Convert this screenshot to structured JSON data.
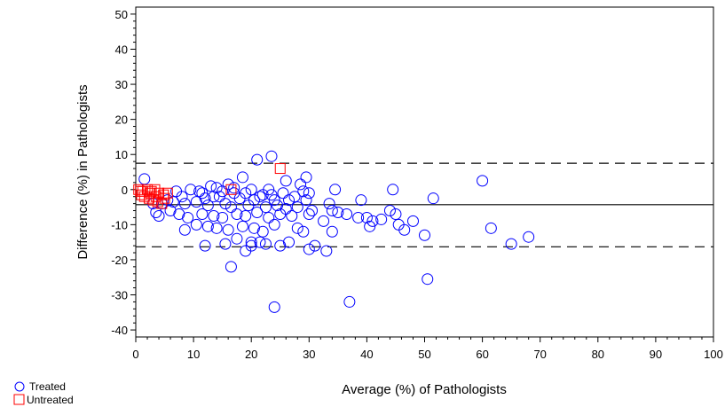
{
  "chart_data": {
    "type": "scatter",
    "xlabel": "Average (%) of Pathologists",
    "ylabel": "Difference (%) in Pathologists",
    "xlim": [
      0,
      100
    ],
    "ylim": [
      -42,
      52
    ],
    "x_ticks": [
      0,
      10,
      20,
      30,
      40,
      50,
      60,
      70,
      80,
      90,
      100
    ],
    "y_ticks": [
      -40,
      -30,
      -20,
      -10,
      0,
      10,
      20,
      30,
      40,
      50
    ],
    "reference_lines": [
      {
        "y": 7.5,
        "style": "dashed"
      },
      {
        "y": -4.3,
        "style": "solid"
      },
      {
        "y": -16.3,
        "style": "dashed"
      }
    ],
    "legend_position": "bottom-left",
    "series": [
      {
        "name": "Treated",
        "marker": "circle",
        "color": "#0000ff",
        "points": [
          [
            23.5,
            9.5
          ],
          [
            21,
            8.5
          ],
          [
            60,
            2.5
          ],
          [
            29.5,
            3.5
          ],
          [
            18.5,
            3.5
          ],
          [
            26,
            2.5
          ],
          [
            28.5,
            1.5
          ],
          [
            1.5,
            3
          ],
          [
            16,
            1.5
          ],
          [
            13,
            1
          ],
          [
            14,
            0.5
          ],
          [
            20,
            0
          ],
          [
            23,
            0
          ],
          [
            34.5,
            0
          ],
          [
            44.5,
            0
          ],
          [
            7,
            -0.5
          ],
          [
            9.5,
            0
          ],
          [
            11,
            -0.5
          ],
          [
            15,
            -0.5
          ],
          [
            17,
            -1
          ],
          [
            19,
            -1
          ],
          [
            22,
            -1.5
          ],
          [
            25.5,
            -1
          ],
          [
            29,
            -0.5
          ],
          [
            30,
            -1
          ],
          [
            27.5,
            -2
          ],
          [
            51.5,
            -2.5
          ],
          [
            39,
            -3
          ],
          [
            8,
            -2
          ],
          [
            12,
            -2.5
          ],
          [
            14.5,
            -2
          ],
          [
            18,
            -2.5
          ],
          [
            20.5,
            -3
          ],
          [
            21.5,
            -2
          ],
          [
            24,
            -3
          ],
          [
            26.5,
            -3
          ],
          [
            3,
            -4
          ],
          [
            4.5,
            -4
          ],
          [
            5.5,
            -3
          ],
          [
            6.5,
            -3.5
          ],
          [
            8.5,
            -4
          ],
          [
            10.5,
            -3.5
          ],
          [
            12.5,
            -4.5
          ],
          [
            15.5,
            -4
          ],
          [
            16.5,
            -5
          ],
          [
            19.5,
            -4.5
          ],
          [
            22.5,
            -5
          ],
          [
            24.5,
            -4.5
          ],
          [
            26,
            -5.5
          ],
          [
            28,
            -5
          ],
          [
            30.5,
            -6
          ],
          [
            33.5,
            -4
          ],
          [
            34,
            -6
          ],
          [
            3.5,
            -6.5
          ],
          [
            4,
            -7.5
          ],
          [
            6,
            -6
          ],
          [
            7.5,
            -7
          ],
          [
            9,
            -8
          ],
          [
            11.5,
            -7
          ],
          [
            13.5,
            -7.5
          ],
          [
            15,
            -8
          ],
          [
            17.5,
            -7
          ],
          [
            19,
            -7.5
          ],
          [
            21,
            -6.5
          ],
          [
            23,
            -8
          ],
          [
            25,
            -7
          ],
          [
            27,
            -7.5
          ],
          [
            30,
            -7
          ],
          [
            32.5,
            -9
          ],
          [
            36.5,
            -7
          ],
          [
            40,
            -8
          ],
          [
            41,
            -9
          ],
          [
            44,
            -6
          ],
          [
            45,
            -7
          ],
          [
            45.5,
            -10
          ],
          [
            46.5,
            -11.5
          ],
          [
            40.5,
            -10.5
          ],
          [
            10.5,
            -10
          ],
          [
            12.5,
            -10.5
          ],
          [
            14,
            -11
          ],
          [
            16,
            -11.5
          ],
          [
            18.5,
            -10.5
          ],
          [
            20.5,
            -11
          ],
          [
            22,
            -12
          ],
          [
            24,
            -10
          ],
          [
            28,
            -11
          ],
          [
            29,
            -12
          ],
          [
            34,
            -12
          ],
          [
            61.5,
            -11
          ],
          [
            8.5,
            -11.5
          ],
          [
            15.5,
            -15.5
          ],
          [
            17.5,
            -14
          ],
          [
            20,
            -15
          ],
          [
            22.5,
            -15.5
          ],
          [
            25,
            -16
          ],
          [
            26.5,
            -15
          ],
          [
            30,
            -17
          ],
          [
            31,
            -16
          ],
          [
            33,
            -17.5
          ],
          [
            12,
            -16
          ],
          [
            19,
            -17.5
          ],
          [
            20,
            -16
          ],
          [
            21.5,
            -15
          ],
          [
            50,
            -13
          ],
          [
            68,
            -13.5
          ],
          [
            65,
            -15.5
          ],
          [
            16.5,
            -22
          ],
          [
            50.5,
            -25.5
          ],
          [
            37,
            -32
          ],
          [
            24,
            -33.5
          ],
          [
            11.5,
            -1
          ],
          [
            13.5,
            -2
          ],
          [
            17,
            0.5
          ],
          [
            23.5,
            -1.5
          ],
          [
            29.5,
            -3
          ],
          [
            35,
            -6.5
          ],
          [
            38.5,
            -8
          ],
          [
            42.5,
            -8.5
          ],
          [
            48,
            -9
          ]
        ]
      },
      {
        "name": "Untreated",
        "marker": "square",
        "color": "#ff0000",
        "points": [
          [
            25,
            6
          ],
          [
            16.5,
            0
          ],
          [
            0.5,
            0
          ],
          [
            1.2,
            -0.5
          ],
          [
            2,
            0
          ],
          [
            2.7,
            -0.5
          ],
          [
            3.3,
            0
          ],
          [
            4,
            -1
          ],
          [
            4.8,
            -1.5
          ],
          [
            5.5,
            -1
          ],
          [
            1.5,
            -2
          ],
          [
            2.3,
            -2.5
          ],
          [
            3,
            -3
          ],
          [
            3.8,
            -3.5
          ],
          [
            4.5,
            -4
          ],
          [
            1,
            -1.5
          ],
          [
            2.5,
            -1
          ],
          [
            5,
            -2.5
          ],
          [
            0.8,
            -0.5
          ],
          [
            3.5,
            -2
          ]
        ]
      }
    ]
  }
}
